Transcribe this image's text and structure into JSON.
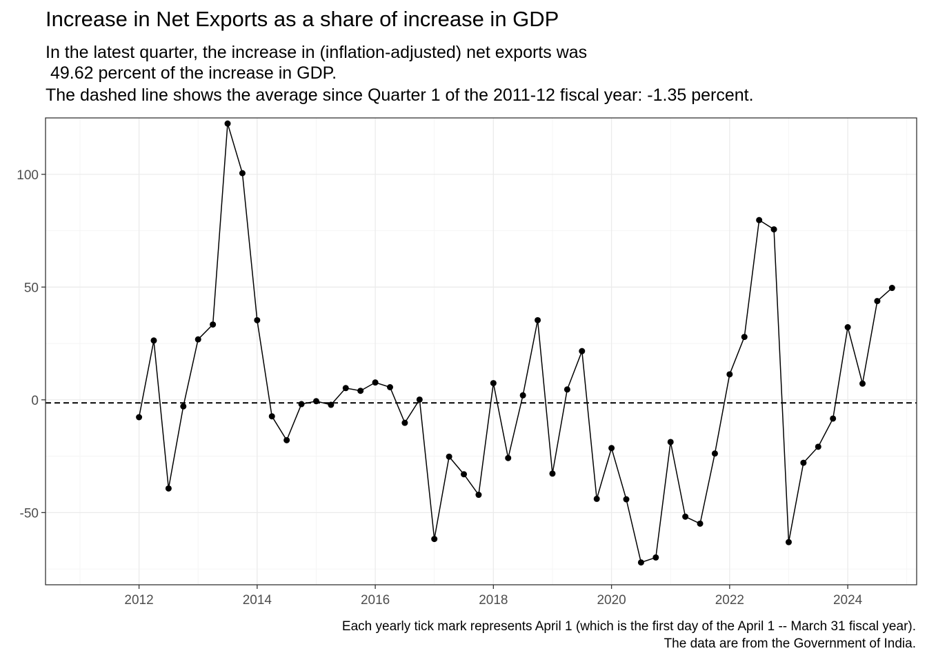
{
  "title": "Increase in Net Exports as a share of increase in GDP",
  "subtitle_lines": [
    "In the latest quarter, the increase in (inflation-adjusted) net exports was",
    " 49.62 percent of the increase in GDP.",
    "The dashed line shows the average since Quarter 1 of the 2011-12 fiscal year: -1.35 percent."
  ],
  "caption_lines": [
    "Each yearly tick mark represents April 1 (which is the first day of the April 1 -- March 31 fiscal year).",
    "The data are from the Government of India."
  ],
  "chart_data": {
    "type": "line",
    "title": "Increase in Net Exports as a share of increase in GDP",
    "xlabel": "",
    "ylabel": "",
    "x_ticks": [
      "2012",
      "2014",
      "2016",
      "2018",
      "2020",
      "2022",
      "2024"
    ],
    "y_ticks": [
      "-50",
      "0",
      "50",
      "100"
    ],
    "xlim": [
      "2010-09",
      "2025-06"
    ],
    "ylim": [
      -82,
      125
    ],
    "grid": true,
    "reference_line": {
      "y": -1.35,
      "style": "dashed"
    },
    "x": [
      "2012-04",
      "2012-07",
      "2012-10",
      "2013-01",
      "2013-04",
      "2013-07",
      "2013-10",
      "2014-01",
      "2014-04",
      "2014-07",
      "2014-10",
      "2015-01",
      "2015-04",
      "2015-07",
      "2015-10",
      "2016-01",
      "2016-04",
      "2016-07",
      "2016-10",
      "2017-01",
      "2017-04",
      "2017-07",
      "2017-10",
      "2018-01",
      "2018-04",
      "2018-07",
      "2018-10",
      "2019-01",
      "2019-04",
      "2019-07",
      "2019-10",
      "2020-01",
      "2020-04",
      "2020-07",
      "2020-10",
      "2021-01",
      "2021-04",
      "2021-07",
      "2021-10",
      "2022-01",
      "2022-04",
      "2022-07",
      "2022-10",
      "2023-01",
      "2023-04",
      "2023-07",
      "2023-10",
      "2024-01",
      "2024-04",
      "2024-07",
      "2024-10",
      "2025-01"
    ],
    "values": [
      -7.7,
      26.3,
      -39.3,
      -2.9,
      26.8,
      33.4,
      122.5,
      100.5,
      35.3,
      -7.3,
      -17.9,
      -1.9,
      -0.6,
      -2.2,
      5.2,
      4.0,
      7.7,
      5.6,
      -10.2,
      0.1,
      -61.7,
      -25.2,
      -33.0,
      -42.1,
      7.4,
      -25.8,
      2.0,
      35.3,
      -32.7,
      4.6,
      21.6,
      -43.9,
      -21.4,
      -44.1,
      -72.1,
      -69.9,
      -18.7,
      -51.8,
      -54.9,
      -23.8,
      11.3,
      27.9,
      79.7,
      75.6,
      -63.1,
      -27.9,
      -20.8,
      -8.3,
      32.2,
      7.2,
      43.8,
      49.62
    ]
  }
}
